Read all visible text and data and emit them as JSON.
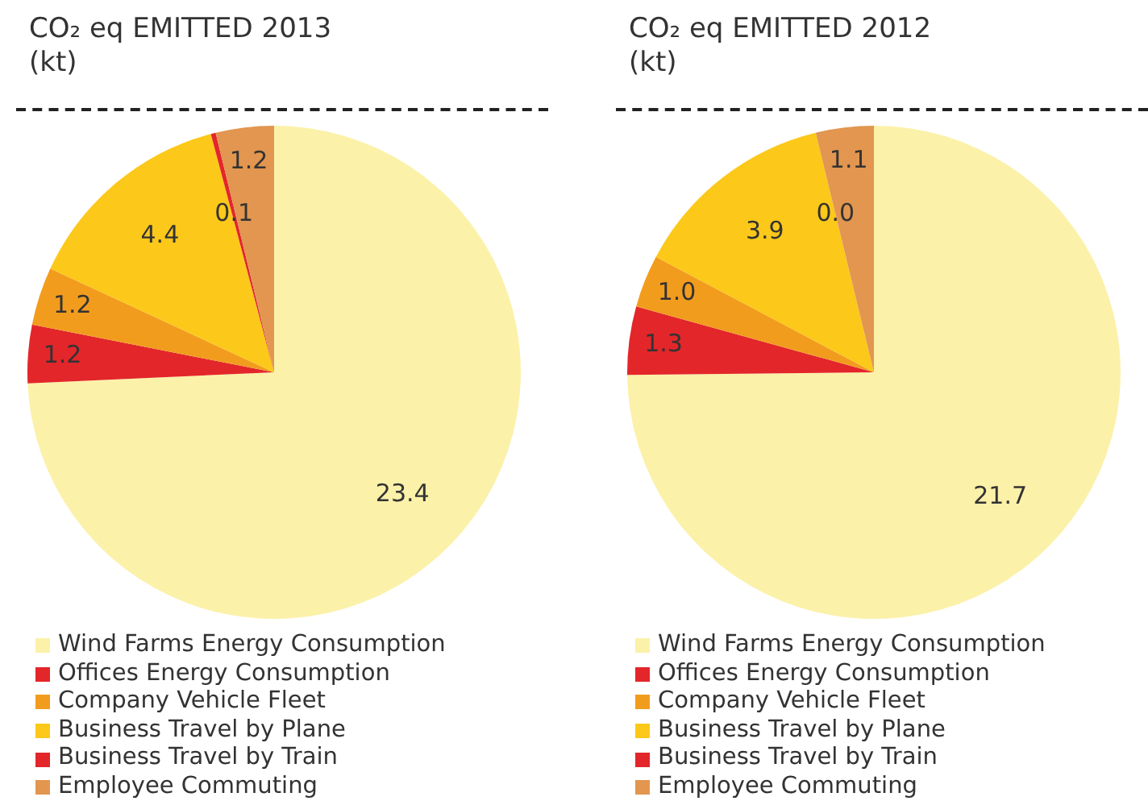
{
  "chart_data": [
    {
      "type": "pie",
      "title": "CO₂ eq EMITTED  2013",
      "subtitle": "(kt)",
      "categories": [
        "Wind Farms Energy Consumption",
        "Offices Energy Consumption",
        "Company Vehicle Fleet",
        "Business Travel by Plane",
        "Business Travel by Train",
        "Employee Commuting"
      ],
      "values": [
        23.4,
        1.2,
        1.2,
        4.4,
        0.1,
        1.2
      ],
      "value_labels": [
        "23.4",
        "1.2",
        "1.2",
        "4.4",
        "0.1",
        "1.2"
      ],
      "colors": [
        "#fbf1a9",
        "#e3262a",
        "#f29c1e",
        "#fcc81a",
        "#e3262a",
        "#e2964f"
      ],
      "legend": "bottom"
    },
    {
      "type": "pie",
      "title": "CO₂ eq EMITTED  2012",
      "subtitle": "(kt)",
      "categories": [
        "Wind Farms Energy Consumption",
        "Offices Energy Consumption",
        "Company Vehicle Fleet",
        "Business Travel by Plane",
        "Business Travel by Train",
        "Employee Commuting"
      ],
      "values": [
        21.7,
        1.3,
        1.0,
        3.9,
        0.0,
        1.1
      ],
      "value_labels": [
        "21.7",
        "1.3",
        "1.0",
        "3.9",
        "0.0",
        "1.1"
      ],
      "colors": [
        "#fbf1a9",
        "#e3262a",
        "#f29c1e",
        "#fcc81a",
        "#e3262a",
        "#e2964f"
      ],
      "legend": "bottom"
    }
  ]
}
